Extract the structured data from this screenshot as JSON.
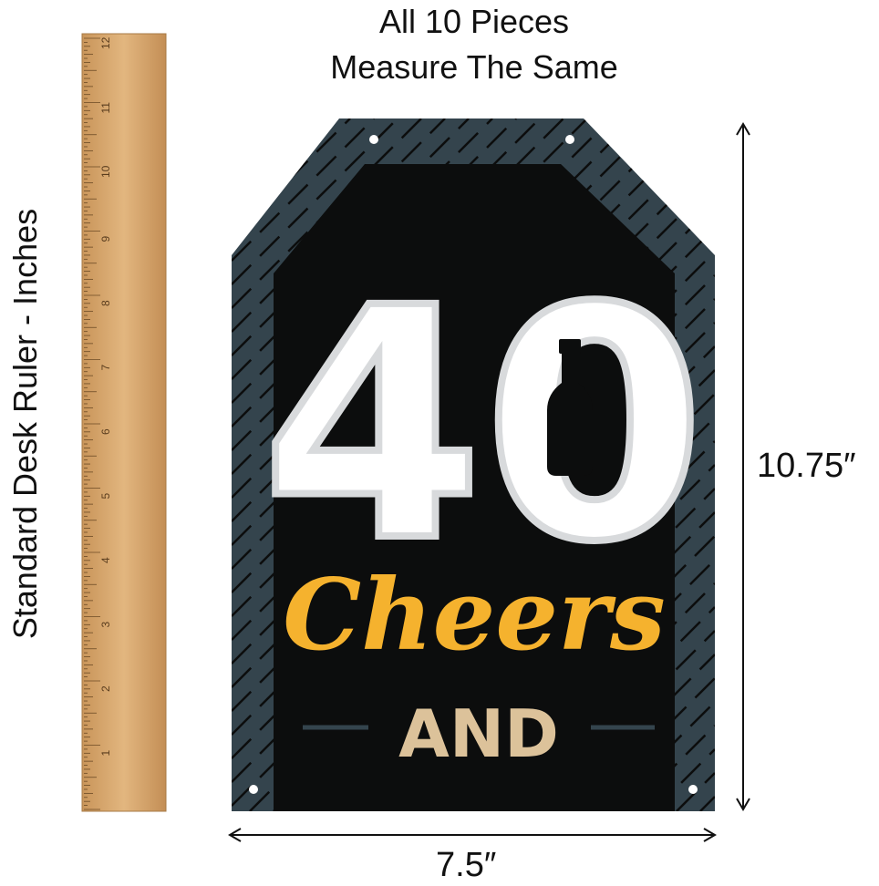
{
  "header": {
    "line1": "All 10 Pieces",
    "line2": "Measure The Same"
  },
  "ruler": {
    "label": "Standard Desk Ruler - Inches",
    "numbers": [
      "1",
      "2",
      "3",
      "4",
      "5",
      "6",
      "7",
      "8",
      "9",
      "10",
      "11",
      "12"
    ]
  },
  "sign": {
    "number": "40",
    "script_word": "Cheers",
    "word": "AND"
  },
  "dimensions": {
    "height": "10.75″",
    "width": "7.5″"
  },
  "colors": {
    "frame": "#34444d",
    "panel": "#0c0d0d",
    "script": "#f5b22e",
    "and": "#dcc29a",
    "ruler": "#deb27a",
    "number_shadow": "#d8dadc"
  }
}
